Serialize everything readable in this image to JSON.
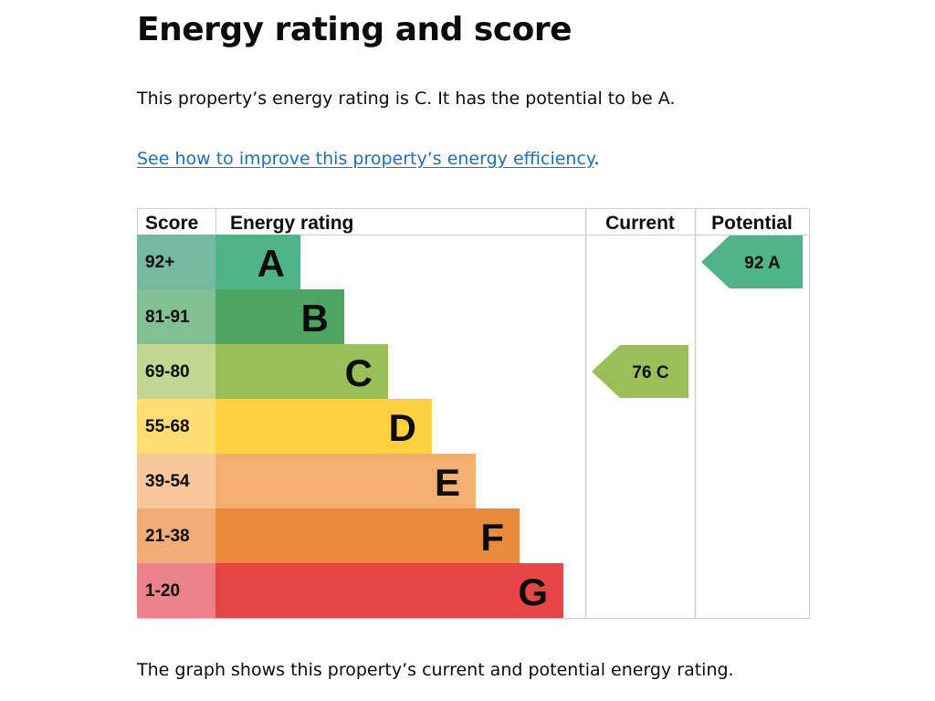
{
  "page": {
    "title": "Energy rating and score",
    "intro": "This property’s energy rating is C. It has the potential to be A.",
    "link_text": "See how to improve this property’s energy efficiency",
    "link_suffix": ".",
    "footer": "The graph shows this property’s current and potential energy rating."
  },
  "chart_data": {
    "type": "table",
    "title": "Energy rating and score",
    "columns": [
      "Score",
      "Energy rating",
      "Current",
      "Potential"
    ],
    "bands": [
      {
        "letter": "A",
        "range": "92+",
        "color": "#4fb586",
        "score_bg": "#75b9a1"
      },
      {
        "letter": "B",
        "range": "81-91",
        "color": "#4ea562",
        "score_bg": "#82c093"
      },
      {
        "letter": "C",
        "range": "69-80",
        "color": "#9bbf57",
        "score_bg": "#bfd78f"
      },
      {
        "letter": "D",
        "range": "55-68",
        "color": "#ffd040",
        "score_bg": "#ffdd72"
      },
      {
        "letter": "E",
        "range": "39-54",
        "color": "#f4ae6e",
        "score_bg": "#f8c69b"
      },
      {
        "letter": "F",
        "range": "21-38",
        "color": "#ea8a3c",
        "score_bg": "#efac76"
      },
      {
        "letter": "G",
        "range": "1-20",
        "color": "#e54545",
        "score_bg": "#ec8289"
      }
    ],
    "current": {
      "score": 76,
      "rating": "C",
      "label": "76  C",
      "color": "#9bbf57"
    },
    "potential": {
      "score": 92,
      "rating": "A",
      "label": "92  A",
      "color": "#4fb586"
    }
  }
}
